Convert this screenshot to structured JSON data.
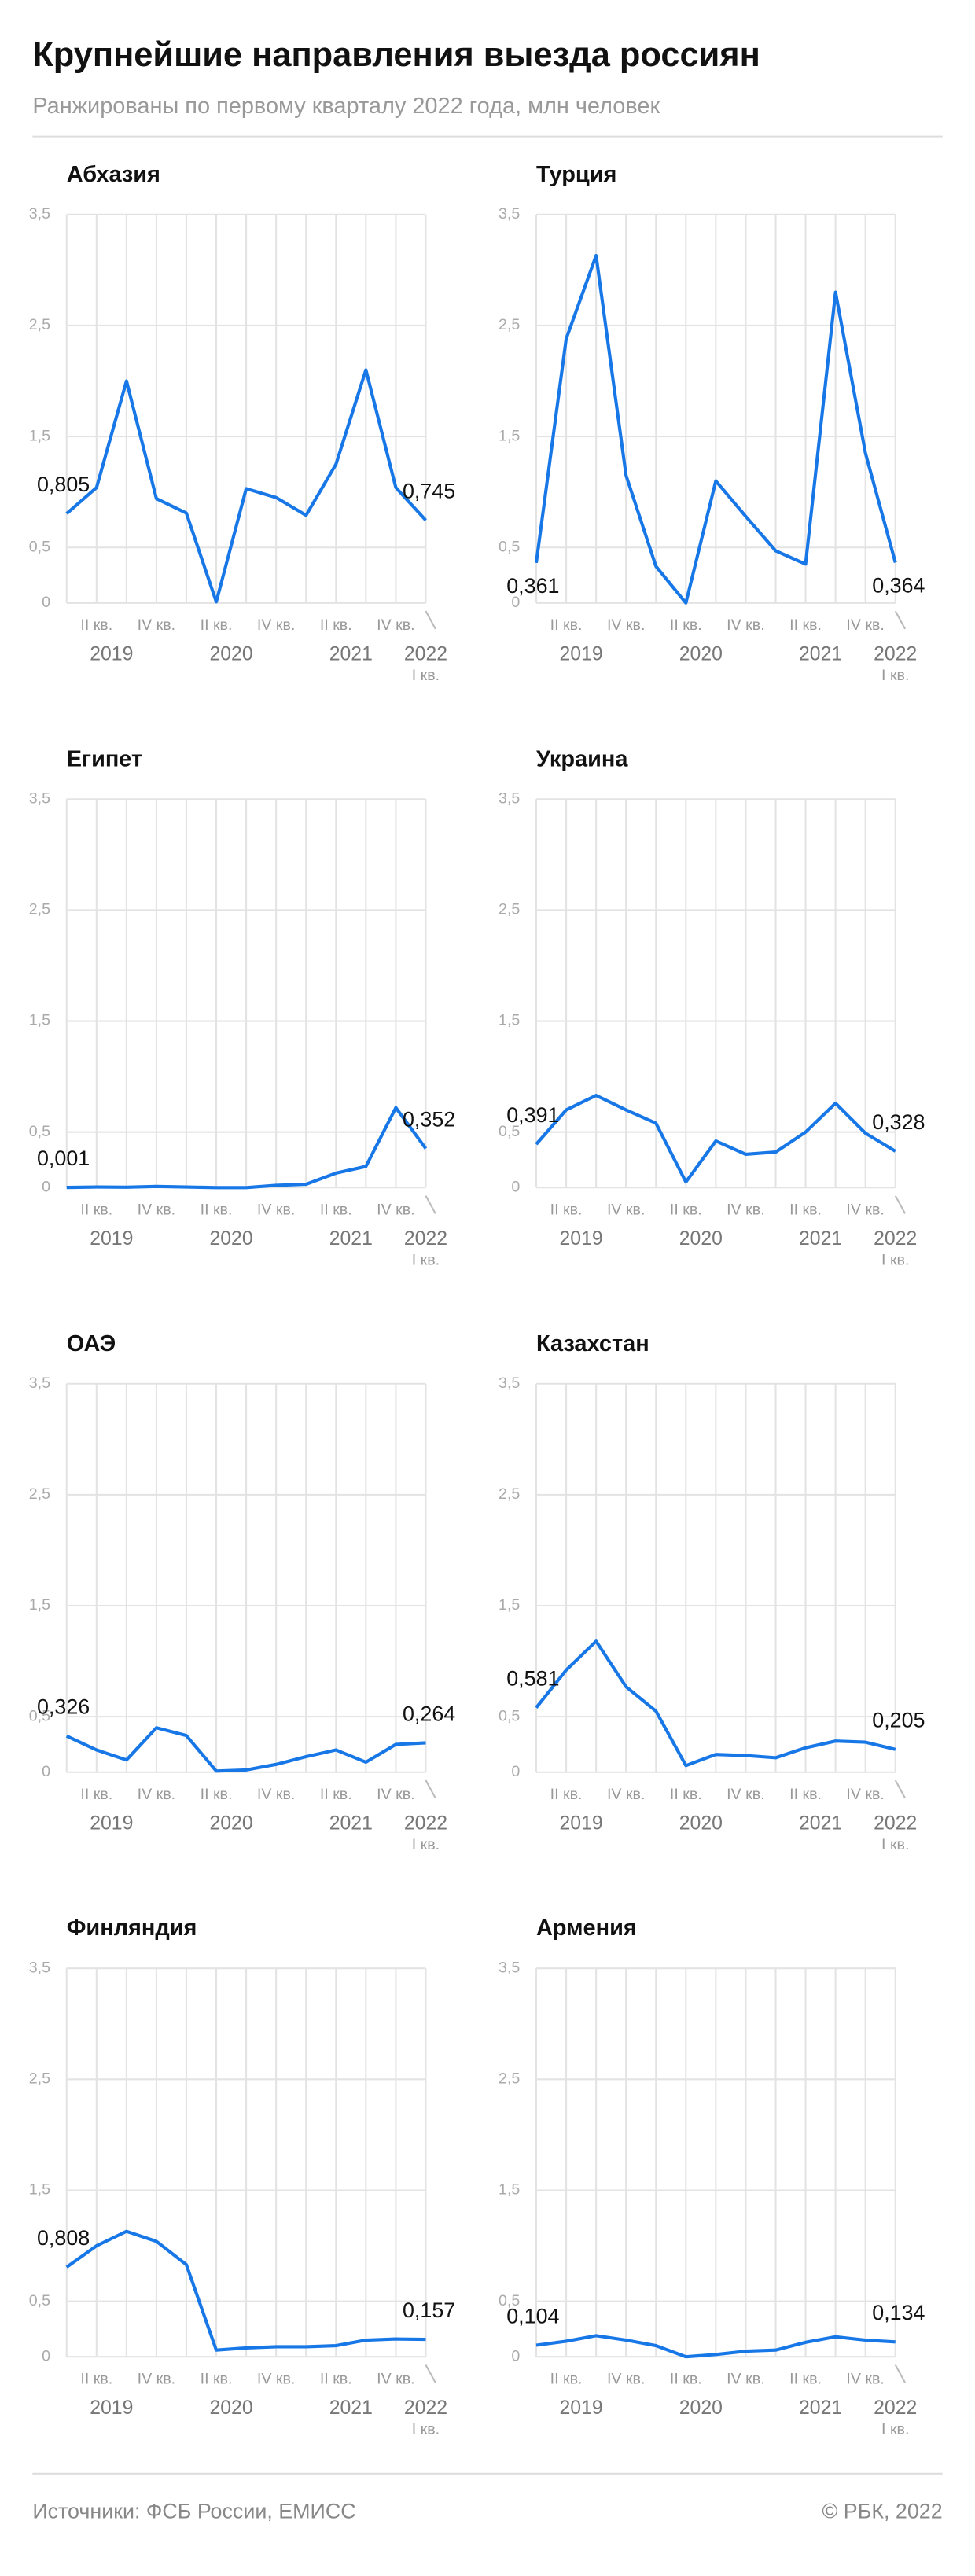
{
  "title": "Крупнейшие направления выезда россиян",
  "subtitle": "Ранжированы по первому кварталу 2022 года, млн человек",
  "source": "Источники: ФСБ России, ЕМИСС",
  "copyright": "© РБК, 2022",
  "chart_data": [
    {
      "type": "line",
      "title": "Абхазия",
      "categories": [
        null,
        "II кв.",
        null,
        "IV кв.",
        null,
        "II кв.",
        null,
        "IV кв.",
        null,
        "II кв.",
        null,
        "IV кв.",
        "I кв."
      ],
      "years": [
        "2019",
        "2020",
        "2021",
        "2022"
      ],
      "values": [
        0.805,
        1.04,
        2.0,
        0.94,
        0.81,
        0.01,
        1.03,
        0.95,
        0.79,
        1.25,
        2.1,
        1.04,
        0.745
      ],
      "value_labels": [
        "0,805",
        null,
        null,
        null,
        null,
        null,
        null,
        null,
        null,
        null,
        null,
        null,
        "0,745"
      ],
      "color": "#1877e6",
      "ylim": [
        0,
        3.5
      ],
      "yticks": [
        0,
        {
          "value": 0.5,
          "label": "0,5"
        },
        {
          "value": 1.5,
          "label": "1,5"
        },
        {
          "value": 2.5,
          "label": "2,5"
        },
        {
          "value": 3.5,
          "label": "3,5"
        }
      ],
      "grid": true
    },
    {
      "type": "line",
      "title": "Турция",
      "categories": [
        null,
        "II кв.",
        null,
        "IV кв.",
        null,
        "II кв.",
        null,
        "IV кв.",
        null,
        "II кв.",
        null,
        "IV кв.",
        "I кв."
      ],
      "years": [
        "2019",
        "2020",
        "2021",
        "2022"
      ],
      "values": [
        0.361,
        2.38,
        3.13,
        1.15,
        0.33,
        0.0,
        1.1,
        0.78,
        0.47,
        0.35,
        2.8,
        1.35,
        0.364
      ],
      "value_labels": [
        "0,361",
        null,
        null,
        null,
        null,
        null,
        null,
        null,
        null,
        null,
        null,
        null,
        "0,364"
      ],
      "color": "#1877e6",
      "ylim": [
        0,
        3.5
      ],
      "yticks": [
        0,
        {
          "value": 0.5,
          "label": "0,5"
        },
        {
          "value": 1.5,
          "label": "1,5"
        },
        {
          "value": 2.5,
          "label": "2,5"
        },
        {
          "value": 3.5,
          "label": "3,5"
        }
      ],
      "grid": true
    },
    {
      "type": "line",
      "title": "Египет",
      "categories": [
        null,
        "II кв.",
        null,
        "IV кв.",
        null,
        "II кв.",
        null,
        "IV кв.",
        null,
        "II кв.",
        null,
        "IV кв.",
        "I кв."
      ],
      "years": [
        "2019",
        "2020",
        "2021",
        "2022"
      ],
      "values": [
        0.001,
        0.005,
        0.003,
        0.01,
        0.005,
        0.0,
        0.0,
        0.02,
        0.03,
        0.13,
        0.19,
        0.72,
        0.352
      ],
      "value_labels": [
        "0,001",
        null,
        null,
        null,
        null,
        null,
        null,
        null,
        null,
        null,
        null,
        null,
        "0,352"
      ],
      "color": "#1877e6",
      "ylim": [
        0,
        3.5
      ],
      "yticks": [
        0,
        {
          "value": 0.5,
          "label": "0,5"
        },
        {
          "value": 1.5,
          "label": "1,5"
        },
        {
          "value": 2.5,
          "label": "2,5"
        },
        {
          "value": 3.5,
          "label": "3,5"
        }
      ],
      "grid": true
    },
    {
      "type": "line",
      "title": "Украина",
      "categories": [
        null,
        "II кв.",
        null,
        "IV кв.",
        null,
        "II кв.",
        null,
        "IV кв.",
        null,
        "II кв.",
        null,
        "IV кв.",
        "I кв."
      ],
      "years": [
        "2019",
        "2020",
        "2021",
        "2022"
      ],
      "values": [
        0.391,
        0.7,
        0.83,
        0.7,
        0.58,
        0.05,
        0.42,
        0.3,
        0.32,
        0.5,
        0.76,
        0.49,
        0.328
      ],
      "value_labels": [
        "0,391",
        null,
        null,
        null,
        null,
        null,
        null,
        null,
        null,
        null,
        null,
        null,
        "0,328"
      ],
      "color": "#1877e6",
      "ylim": [
        0,
        3.5
      ],
      "yticks": [
        0,
        {
          "value": 0.5,
          "label": "0,5"
        },
        {
          "value": 1.5,
          "label": "1,5"
        },
        {
          "value": 2.5,
          "label": "2,5"
        },
        {
          "value": 3.5,
          "label": "3,5"
        }
      ],
      "grid": true
    },
    {
      "type": "line",
      "title": "ОАЭ",
      "categories": [
        null,
        "II кв.",
        null,
        "IV кв.",
        null,
        "II кв.",
        null,
        "IV кв.",
        null,
        "II кв.",
        null,
        "IV кв.",
        "I кв."
      ],
      "years": [
        "2019",
        "2020",
        "2021",
        "2022"
      ],
      "values": [
        0.326,
        0.2,
        0.11,
        0.4,
        0.33,
        0.01,
        0.02,
        0.07,
        0.14,
        0.2,
        0.09,
        0.25,
        0.264
      ],
      "value_labels": [
        "0,326",
        null,
        null,
        null,
        null,
        null,
        null,
        null,
        null,
        null,
        null,
        null,
        "0,264"
      ],
      "color": "#1877e6",
      "ylim": [
        0,
        3.5
      ],
      "yticks": [
        0,
        {
          "value": 0.5,
          "label": "0,5"
        },
        {
          "value": 1.5,
          "label": "1,5"
        },
        {
          "value": 2.5,
          "label": "2,5"
        },
        {
          "value": 3.5,
          "label": "3,5"
        }
      ],
      "grid": true
    },
    {
      "type": "line",
      "title": "Казахстан",
      "categories": [
        null,
        "II кв.",
        null,
        "IV кв.",
        null,
        "II кв.",
        null,
        "IV кв.",
        null,
        "II кв.",
        null,
        "IV кв.",
        "I кв."
      ],
      "years": [
        "2019",
        "2020",
        "2021",
        "2022"
      ],
      "values": [
        0.581,
        0.92,
        1.18,
        0.77,
        0.55,
        0.06,
        0.16,
        0.15,
        0.13,
        0.22,
        0.28,
        0.27,
        0.205
      ],
      "value_labels": [
        "0,581",
        null,
        null,
        null,
        null,
        null,
        null,
        null,
        null,
        null,
        null,
        null,
        "0,205"
      ],
      "color": "#1877e6",
      "ylim": [
        0,
        3.5
      ],
      "yticks": [
        0,
        {
          "value": 0.5,
          "label": "0,5"
        },
        {
          "value": 1.5,
          "label": "1,5"
        },
        {
          "value": 2.5,
          "label": "2,5"
        },
        {
          "value": 3.5,
          "label": "3,5"
        }
      ],
      "grid": true
    },
    {
      "type": "line",
      "title": "Финляндия",
      "categories": [
        null,
        "II кв.",
        null,
        "IV кв.",
        null,
        "II кв.",
        null,
        "IV кв.",
        null,
        "II кв.",
        null,
        "IV кв.",
        "I кв."
      ],
      "years": [
        "2019",
        "2020",
        "2021",
        "2022"
      ],
      "values": [
        0.808,
        1.0,
        1.13,
        1.04,
        0.83,
        0.06,
        0.08,
        0.09,
        0.09,
        0.1,
        0.15,
        0.16,
        0.157
      ],
      "value_labels": [
        "0,808",
        null,
        null,
        null,
        null,
        null,
        null,
        null,
        null,
        null,
        null,
        null,
        "0,157"
      ],
      "color": "#1877e6",
      "ylim": [
        0,
        3.5
      ],
      "yticks": [
        0,
        {
          "value": 0.5,
          "label": "0,5"
        },
        {
          "value": 1.5,
          "label": "1,5"
        },
        {
          "value": 2.5,
          "label": "2,5"
        },
        {
          "value": 3.5,
          "label": "3,5"
        }
      ],
      "grid": true
    },
    {
      "type": "line",
      "title": "Армения",
      "categories": [
        null,
        "II кв.",
        null,
        "IV кв.",
        null,
        "II кв.",
        null,
        "IV кв.",
        null,
        "II кв.",
        null,
        "IV кв.",
        "I кв."
      ],
      "years": [
        "2019",
        "2020",
        "2021",
        "2022"
      ],
      "values": [
        0.104,
        0.14,
        0.19,
        0.15,
        0.1,
        0.0,
        0.02,
        0.05,
        0.06,
        0.13,
        0.18,
        0.15,
        0.134
      ],
      "value_labels": [
        "0,104",
        null,
        null,
        null,
        null,
        null,
        null,
        null,
        null,
        null,
        null,
        null,
        "0,134"
      ],
      "color": "#1877e6",
      "ylim": [
        0,
        3.5
      ],
      "yticks": [
        0,
        {
          "value": 0.5,
          "label": "0,5"
        },
        {
          "value": 1.5,
          "label": "1,5"
        },
        {
          "value": 2.5,
          "label": "2,5"
        },
        {
          "value": 3.5,
          "label": "3,5"
        }
      ],
      "grid": true
    }
  ]
}
